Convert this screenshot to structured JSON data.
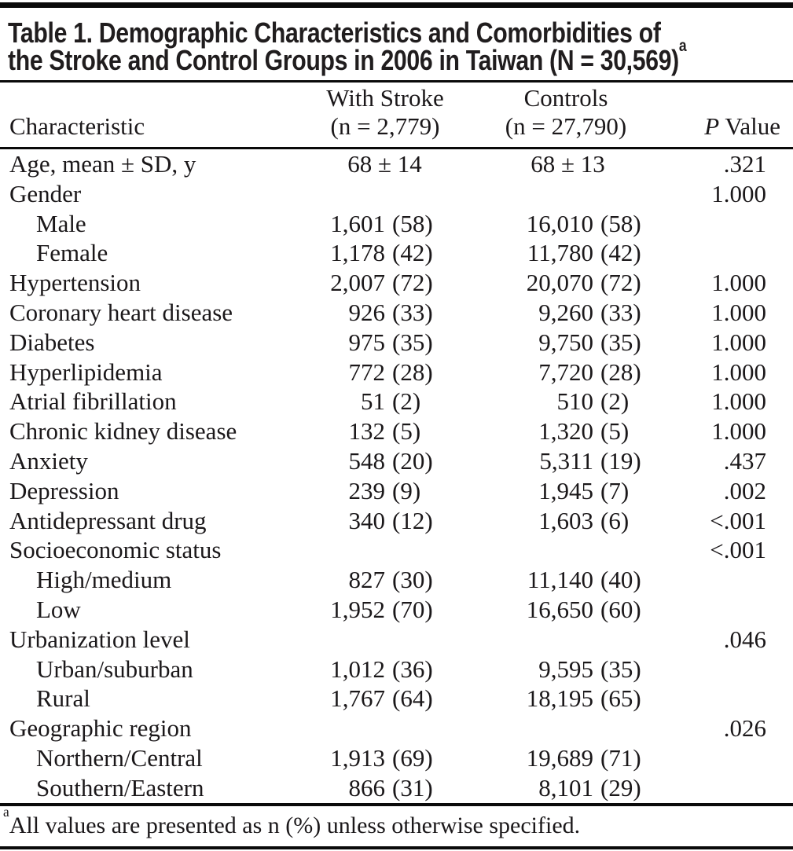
{
  "table": {
    "title_line1": "Table 1. Demographic Characteristics and Comorbidities of",
    "title_line2": "the Stroke and Control Groups in 2006 in Taiwan (N = 30,569)",
    "title_superscript": "a",
    "columns": {
      "characteristic": "Characteristic",
      "stroke_line1": "With Stroke",
      "stroke_line2": "(n = 2,779)",
      "controls_line1": "Controls",
      "controls_line2": "(n = 27,790)",
      "p_italic": "P",
      "p_rest": " Value"
    },
    "rows": [
      {
        "label": "Age, mean ± SD, y",
        "indent": false,
        "stroke": {
          "center": "68 ± 14"
        },
        "controls": {
          "center": "68 ± 13"
        },
        "p": ".321"
      },
      {
        "label": "Gender",
        "indent": false,
        "p": "1.000"
      },
      {
        "label": "Male",
        "indent": true,
        "stroke": {
          "n": "1,601",
          "pct": "(58)"
        },
        "controls": {
          "n": "16,010",
          "pct": "(58)"
        },
        "p": ""
      },
      {
        "label": "Female",
        "indent": true,
        "stroke": {
          "n": "1,178",
          "pct": "(42)"
        },
        "controls": {
          "n": "11,780",
          "pct": "(42)"
        },
        "p": ""
      },
      {
        "label": "Hypertension",
        "indent": false,
        "stroke": {
          "n": "2,007",
          "pct": "(72)"
        },
        "controls": {
          "n": "20,070",
          "pct": "(72)"
        },
        "p": "1.000"
      },
      {
        "label": "Coronary heart disease",
        "indent": false,
        "stroke": {
          "n": "926",
          "pct": "(33)"
        },
        "controls": {
          "n": "9,260",
          "pct": "(33)"
        },
        "p": "1.000"
      },
      {
        "label": "Diabetes",
        "indent": false,
        "stroke": {
          "n": "975",
          "pct": "(35)"
        },
        "controls": {
          "n": "9,750",
          "pct": "(35)"
        },
        "p": "1.000"
      },
      {
        "label": "Hyperlipidemia",
        "indent": false,
        "stroke": {
          "n": "772",
          "pct": "(28)"
        },
        "controls": {
          "n": "7,720",
          "pct": "(28)"
        },
        "p": "1.000"
      },
      {
        "label": "Atrial fibrillation",
        "indent": false,
        "stroke": {
          "n": "51",
          "pct": "(2)"
        },
        "controls": {
          "n": "510",
          "pct": "(2)"
        },
        "p": "1.000"
      },
      {
        "label": "Chronic kidney disease",
        "indent": false,
        "stroke": {
          "n": "132",
          "pct": "(5)"
        },
        "controls": {
          "n": "1,320",
          "pct": "(5)"
        },
        "p": "1.000"
      },
      {
        "label": "Anxiety",
        "indent": false,
        "stroke": {
          "n": "548",
          "pct": "(20)"
        },
        "controls": {
          "n": "5,311",
          "pct": "(19)"
        },
        "p": ".437"
      },
      {
        "label": "Depression",
        "indent": false,
        "stroke": {
          "n": "239",
          "pct": "(9)"
        },
        "controls": {
          "n": "1,945",
          "pct": "(7)"
        },
        "p": ".002"
      },
      {
        "label": "Antidepressant drug",
        "indent": false,
        "stroke": {
          "n": "340",
          "pct": "(12)"
        },
        "controls": {
          "n": "1,603",
          "pct": "(6)"
        },
        "p": "<.001"
      },
      {
        "label": "Socioeconomic status",
        "indent": false,
        "p": "<.001"
      },
      {
        "label": "High/medium",
        "indent": true,
        "stroke": {
          "n": "827",
          "pct": "(30)"
        },
        "controls": {
          "n": "11,140",
          "pct": "(40)"
        },
        "p": ""
      },
      {
        "label": "Low",
        "indent": true,
        "stroke": {
          "n": "1,952",
          "pct": "(70)"
        },
        "controls": {
          "n": "16,650",
          "pct": "(60)"
        },
        "p": ""
      },
      {
        "label": "Urbanization level",
        "indent": false,
        "p": ".046"
      },
      {
        "label": "Urban/suburban",
        "indent": true,
        "stroke": {
          "n": "1,012",
          "pct": "(36)"
        },
        "controls": {
          "n": "9,595",
          "pct": "(35)"
        },
        "p": ""
      },
      {
        "label": "Rural",
        "indent": true,
        "stroke": {
          "n": "1,767",
          "pct": "(64)"
        },
        "controls": {
          "n": "18,195",
          "pct": "(65)"
        },
        "p": ""
      },
      {
        "label": "Geographic region",
        "indent": false,
        "p": ".026"
      },
      {
        "label": "Northern/Central",
        "indent": true,
        "stroke": {
          "n": "1,913",
          "pct": "(69)"
        },
        "controls": {
          "n": "19,689",
          "pct": "(71)"
        },
        "p": ""
      },
      {
        "label": "Southern/Eastern",
        "indent": true,
        "stroke": {
          "n": "866",
          "pct": "(31)"
        },
        "controls": {
          "n": "8,101",
          "pct": "(29)"
        },
        "p": ""
      }
    ],
    "footnote_superscript": "a",
    "footnote": "All values are presented as n (%) unless otherwise specified."
  }
}
